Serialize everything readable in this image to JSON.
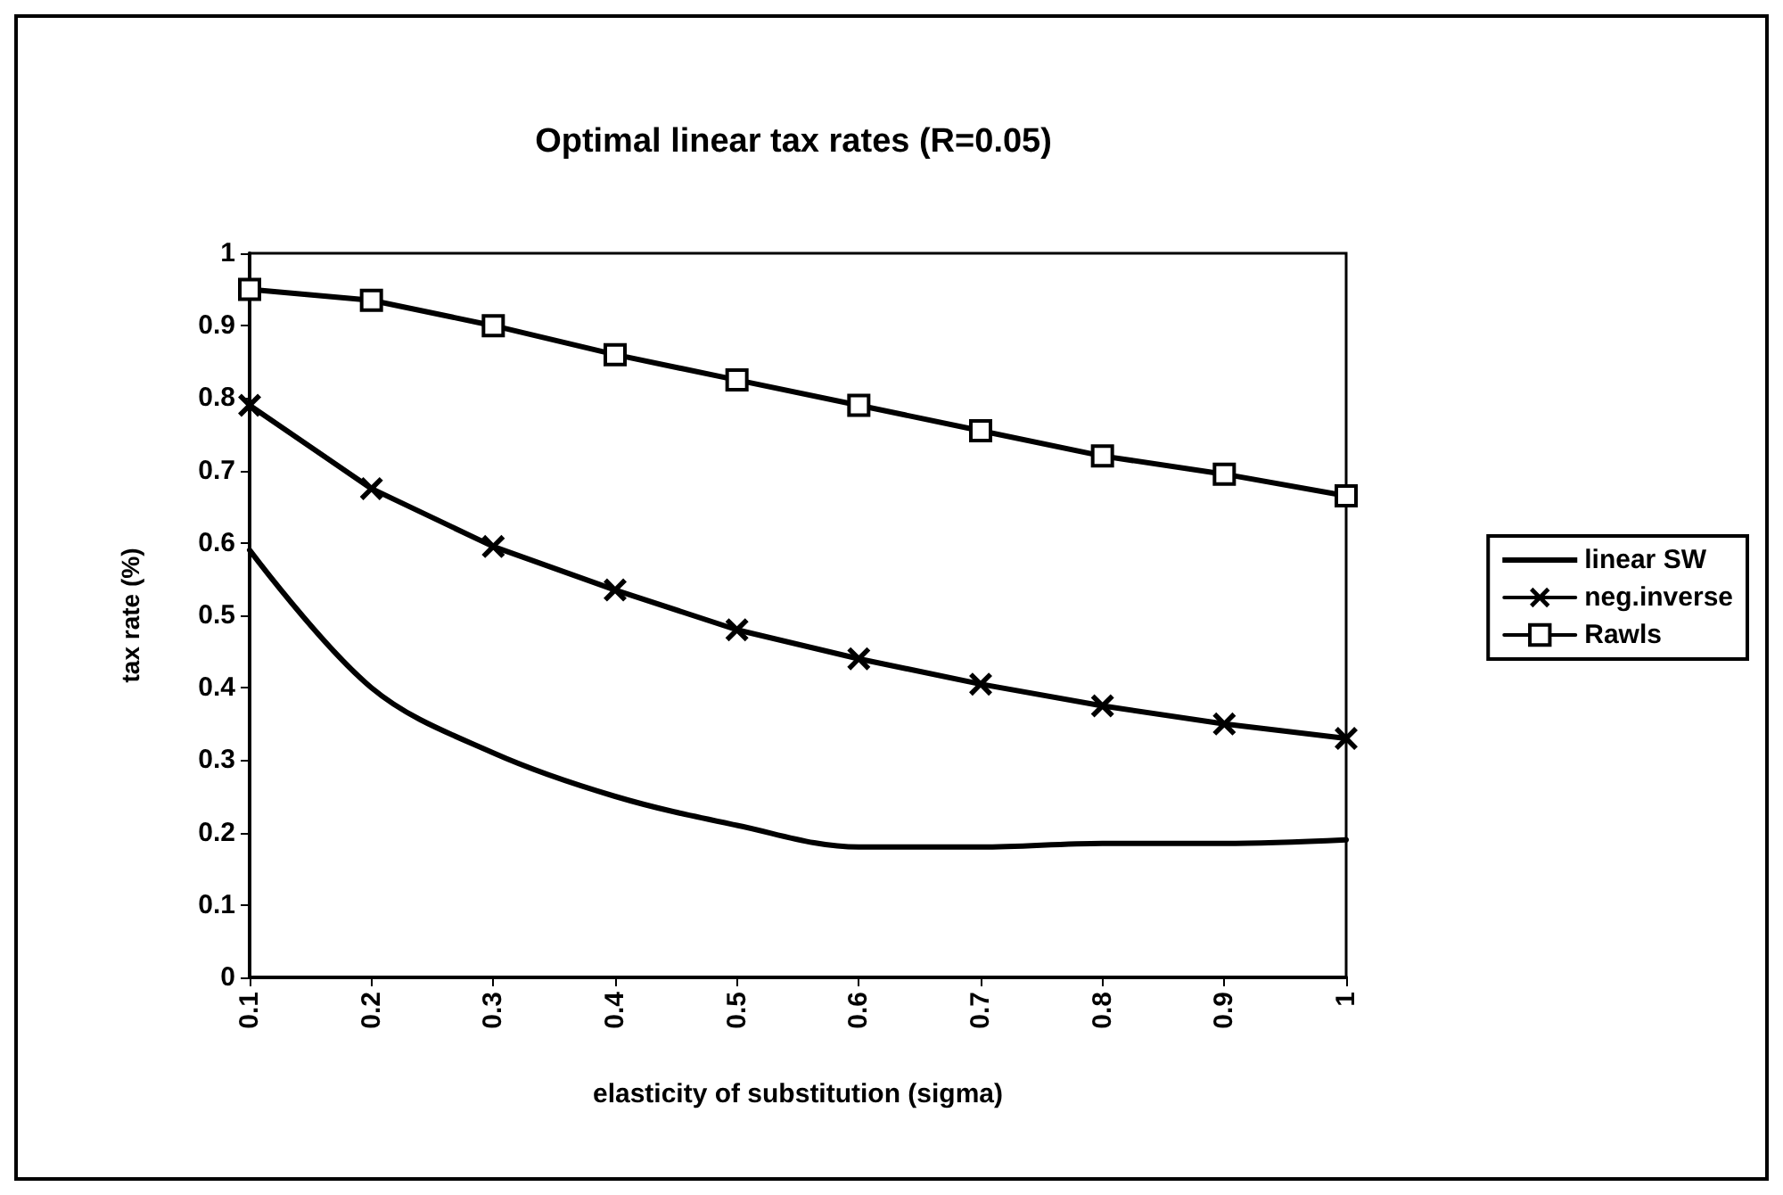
{
  "chart_data": {
    "type": "line",
    "title": "Optimal linear tax rates (R=0.05)",
    "xlabel": "elasticity of substitution (sigma)",
    "ylabel": "tax rate (%)",
    "categories": [
      "0.1",
      "0.2",
      "0.3",
      "0.4",
      "0.5",
      "0.6",
      "0.7",
      "0.8",
      "0.9",
      "1"
    ],
    "ylim": [
      0,
      1
    ],
    "yticks": [
      0,
      0.1,
      0.2,
      0.3,
      0.4,
      0.5,
      0.6,
      0.7,
      0.8,
      0.9,
      1
    ],
    "grid": false,
    "legend": "right",
    "line_style": "solid",
    "series": [
      {
        "name": "linear SW",
        "color": "#000000",
        "marker": "none",
        "values": [
          0.59,
          0.4,
          0.31,
          0.25,
          0.21,
          0.18,
          0.18,
          0.185,
          0.185,
          0.19
        ]
      },
      {
        "name": "neg.inverse",
        "color": "#000000",
        "marker": "cross",
        "values": [
          0.79,
          0.675,
          0.595,
          0.535,
          0.48,
          0.44,
          0.405,
          0.375,
          0.35,
          0.33
        ]
      },
      {
        "name": "Rawls",
        "color": "#000000",
        "marker": "square",
        "values": [
          0.95,
          0.935,
          0.9,
          0.86,
          0.825,
          0.79,
          0.755,
          0.72,
          0.695,
          0.665
        ]
      }
    ]
  }
}
